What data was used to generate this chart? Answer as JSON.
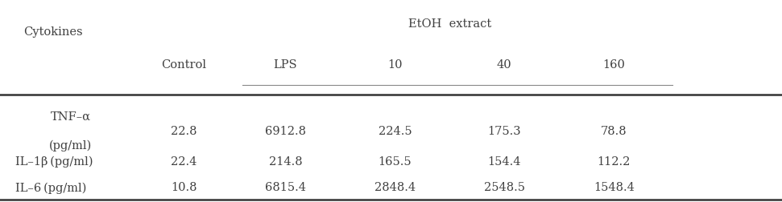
{
  "header_top_label": "EtOH  extract",
  "cytokines_label": "Cytokines",
  "col_headers": [
    "Control",
    "LPS",
    "10",
    "40",
    "160"
  ],
  "rows": [
    {
      "label": [
        "TNF–α",
        "(pg/ml)"
      ],
      "values": [
        "22.8",
        "6912.8",
        "224.5",
        "175.3",
        "78.8"
      ]
    },
    {
      "label": [
        "IL–1β（pg/ml）"
      ],
      "values": [
        "22.4",
        "214.8",
        "165.5",
        "154.4",
        "112.2"
      ]
    },
    {
      "label": [
        "IL–6（pg/ml）"
      ],
      "values": [
        "10.8",
        "6815.4",
        "2848.4",
        "2548.5",
        "1548.4"
      ]
    }
  ],
  "bg_color": "#ffffff",
  "text_color": "#404040",
  "font_size": 10.5
}
